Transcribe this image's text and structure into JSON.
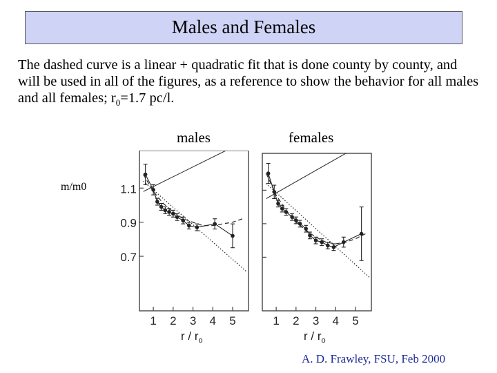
{
  "slide": {
    "title": "Males and Females",
    "description_main": "The dashed curve is a linear + quadratic fit that is done county by county, and will be used in all of the figures, as a reference to show the behavior for all males and all females; r",
    "description_sub": "0",
    "description_tail": "=1.7 pc/l.",
    "label_males": "males",
    "label_females": "females",
    "y_label": "m/m0",
    "credit": "A. D. Frawley, FSU, Feb 2000"
  },
  "chart_data": [
    {
      "type": "scatter",
      "panel": "males",
      "xlabel": "r / r0",
      "ylabel": "m/m0",
      "x_ticks": [
        1,
        2,
        3,
        4,
        5
      ],
      "y_ticks": [
        0.7,
        0.9,
        1.1
      ],
      "y_tick_labels": [
        "0.7",
        "0.9",
        "1.1"
      ],
      "x_tick_labels": [
        "1",
        "2",
        "3",
        "4",
        "5"
      ],
      "xlim": [
        0.3,
        5.8
      ],
      "ylim": [
        0.38,
        1.32
      ],
      "points": [
        {
          "x": 0.6,
          "y": 1.18,
          "err": 0.06
        },
        {
          "x": 1.0,
          "y": 1.09,
          "err": 0.03
        },
        {
          "x": 1.2,
          "y": 1.02,
          "err": 0.02
        },
        {
          "x": 1.4,
          "y": 0.99,
          "err": 0.02
        },
        {
          "x": 1.6,
          "y": 0.97,
          "err": 0.02
        },
        {
          "x": 1.8,
          "y": 0.96,
          "err": 0.02
        },
        {
          "x": 2.0,
          "y": 0.95,
          "err": 0.02
        },
        {
          "x": 2.2,
          "y": 0.93,
          "err": 0.02
        },
        {
          "x": 2.5,
          "y": 0.91,
          "err": 0.02
        },
        {
          "x": 2.8,
          "y": 0.88,
          "err": 0.02
        },
        {
          "x": 3.2,
          "y": 0.87,
          "err": 0.02
        },
        {
          "x": 4.1,
          "y": 0.89,
          "err": 0.03
        },
        {
          "x": 5.0,
          "y": 0.82,
          "err": 0.07
        }
      ],
      "linear_fit": {
        "x": [
          0.5,
          5.7
        ],
        "y": [
          1.14,
          0.61
        ]
      },
      "reference_line": {
        "x": [
          0.5,
          5.7
        ],
        "y": [
          1.08,
          1.38
        ]
      },
      "quadratic_fit": {
        "x": [
          0.5,
          1.0,
          1.5,
          2.0,
          2.5,
          3.0,
          3.5,
          4.0,
          4.5,
          5.0,
          5.5
        ],
        "y": [
          1.18,
          1.08,
          1.01,
          0.96,
          0.92,
          0.9,
          0.88,
          0.88,
          0.89,
          0.9,
          0.92
        ]
      }
    },
    {
      "type": "scatter",
      "panel": "females",
      "xlabel": "r / r0",
      "ylabel": "m/m0",
      "x_ticks": [
        1,
        2,
        3,
        4,
        5
      ],
      "y_ticks": [
        0.7,
        0.9,
        1.1
      ],
      "x_tick_labels": [
        "1",
        "2",
        "3",
        "4",
        "5"
      ],
      "xlim": [
        0.3,
        5.8
      ],
      "ylim": [
        0.38,
        1.32
      ],
      "points": [
        {
          "x": 0.6,
          "y": 1.2,
          "err": 0.06
        },
        {
          "x": 0.9,
          "y": 1.09,
          "err": 0.04
        },
        {
          "x": 1.1,
          "y": 1.02,
          "err": 0.02
        },
        {
          "x": 1.3,
          "y": 0.99,
          "err": 0.02
        },
        {
          "x": 1.5,
          "y": 0.97,
          "err": 0.02
        },
        {
          "x": 1.8,
          "y": 0.94,
          "err": 0.02
        },
        {
          "x": 2.0,
          "y": 0.92,
          "err": 0.02
        },
        {
          "x": 2.2,
          "y": 0.9,
          "err": 0.02
        },
        {
          "x": 2.5,
          "y": 0.87,
          "err": 0.02
        },
        {
          "x": 2.7,
          "y": 0.83,
          "err": 0.02
        },
        {
          "x": 3.0,
          "y": 0.8,
          "err": 0.02
        },
        {
          "x": 3.3,
          "y": 0.79,
          "err": 0.02
        },
        {
          "x": 3.6,
          "y": 0.77,
          "err": 0.02
        },
        {
          "x": 3.9,
          "y": 0.76,
          "err": 0.02
        },
        {
          "x": 4.4,
          "y": 0.79,
          "err": 0.03
        },
        {
          "x": 5.3,
          "y": 0.84,
          "err": 0.16
        }
      ],
      "linear_fit": {
        "x": [
          0.5,
          5.7
        ],
        "y": [
          1.14,
          0.58
        ]
      },
      "reference_line": {
        "x": [
          0.5,
          5.7
        ],
        "y": [
          1.05,
          1.4
        ]
      },
      "quadratic_fit": {
        "x": [
          0.5,
          1.0,
          1.5,
          2.0,
          2.5,
          3.0,
          3.5,
          4.0,
          4.5,
          5.0,
          5.5
        ],
        "y": [
          1.2,
          1.07,
          0.98,
          0.91,
          0.86,
          0.82,
          0.79,
          0.78,
          0.79,
          0.81,
          0.84
        ]
      }
    }
  ]
}
